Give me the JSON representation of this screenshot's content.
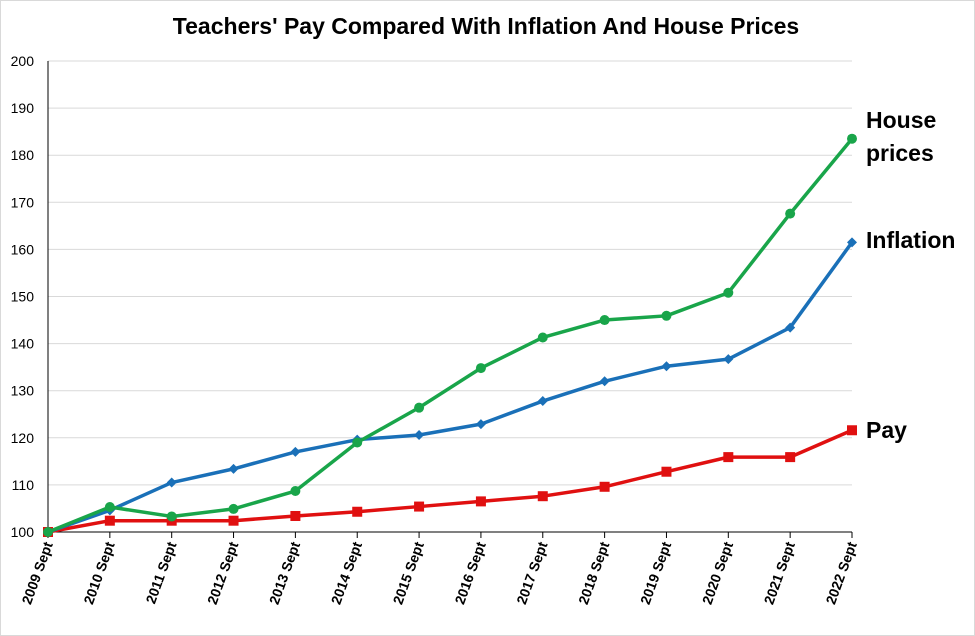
{
  "chart_data": {
    "type": "line",
    "title": "Teachers' Pay Compared With Inflation And House Prices",
    "xlabel": "",
    "ylabel": "",
    "categories": [
      "2009 Sept",
      "2010 Sept",
      "2011 Sept",
      "2012 Sept",
      "2013 Sept",
      "2014 Sept",
      "2015 Sept",
      "2016 Sept",
      "2017 Sept",
      "2018 Sept",
      "2019 Sept",
      "2020 Sept",
      "2021 Sept",
      "2022 Sept"
    ],
    "ylim": [
      100,
      200
    ],
    "yticks": [
      100,
      110,
      120,
      130,
      140,
      150,
      160,
      170,
      180,
      190,
      200
    ],
    "grid": true,
    "legend": "direct labels at right end of lines",
    "series": [
      {
        "name": "House prices",
        "label_lines": [
          "House",
          "prices"
        ],
        "color": "#19a54a",
        "marker": "circle",
        "values": [
          100,
          105.3,
          103.3,
          104.9,
          108.7,
          119,
          126.4,
          134.8,
          141.3,
          145,
          145.9,
          150.8,
          167.6,
          183.5
        ]
      },
      {
        "name": "Inflation",
        "label_lines": [
          "Inflation"
        ],
        "color": "#1a70b8",
        "marker": "diamond",
        "values": [
          100,
          104.6,
          110.5,
          113.4,
          117,
          119.6,
          120.6,
          122.9,
          127.8,
          132,
          135.2,
          136.7,
          143.4,
          161.5
        ]
      },
      {
        "name": "Pay",
        "label_lines": [
          "Pay"
        ],
        "color": "#e01010",
        "marker": "square",
        "values": [
          100,
          102.4,
          102.4,
          102.4,
          103.4,
          104.3,
          105.4,
          106.5,
          107.6,
          109.6,
          112.8,
          115.9,
          115.9,
          121.6
        ]
      }
    ]
  }
}
